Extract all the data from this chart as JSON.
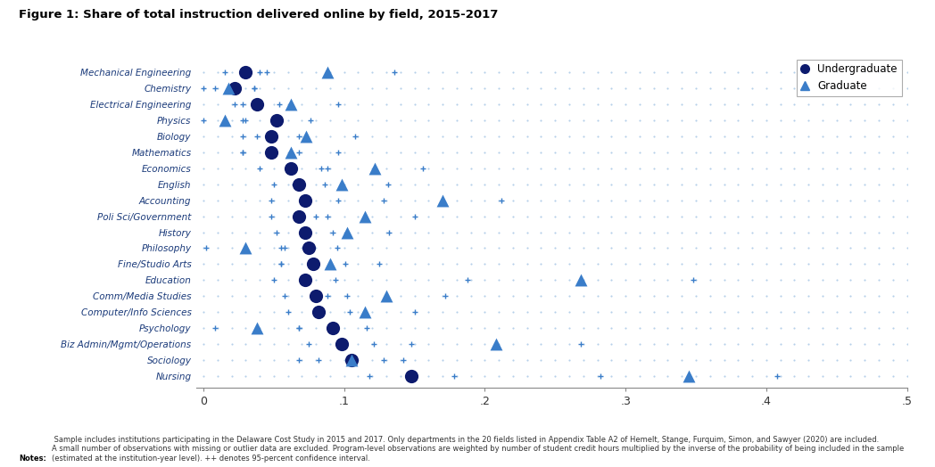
{
  "title": "Figure 1: Share of total instruction delivered online by field, 2015-2017",
  "fields": [
    "Mechanical Engineering",
    "Chemistry",
    "Electrical Engineering",
    "Physics",
    "Biology",
    "Mathematics",
    "Economics",
    "English",
    "Accounting",
    "Poli Sci/Government",
    "History",
    "Philosophy",
    "Fine/Studio Arts",
    "Education",
    "Comm/Media Studies",
    "Computer/Info Sciences",
    "Psychology",
    "Biz Admin/Mgmt/Operations",
    "Sociology",
    "Nursing"
  ],
  "undergrad_mean": [
    0.03,
    0.022,
    0.038,
    0.052,
    0.048,
    0.048,
    0.062,
    0.068,
    0.072,
    0.068,
    0.072,
    0.075,
    0.078,
    0.072,
    0.08,
    0.082,
    0.092,
    0.098,
    0.105,
    0.148
  ],
  "grad_mean": [
    0.088,
    0.018,
    0.062,
    0.015,
    0.073,
    0.062,
    0.122,
    0.098,
    0.17,
    0.115,
    0.102,
    0.03,
    0.09,
    0.268,
    0.13,
    0.115,
    0.038,
    0.208,
    0.105,
    0.345
  ],
  "undergrad_ci_lo": [
    0.015,
    0.008,
    0.022,
    0.028,
    0.028,
    0.028,
    0.04,
    0.05,
    0.048,
    0.048,
    0.052,
    0.055,
    0.055,
    0.05,
    0.058,
    0.06,
    0.068,
    0.075,
    0.082,
    0.118
  ],
  "undergrad_ci_hi": [
    0.045,
    0.036,
    0.054,
    0.076,
    0.068,
    0.068,
    0.084,
    0.086,
    0.096,
    0.088,
    0.092,
    0.095,
    0.101,
    0.094,
    0.102,
    0.104,
    0.116,
    0.121,
    0.128,
    0.178
  ],
  "grad_ci_lo": [
    0.04,
    0.0,
    0.028,
    0.0,
    0.038,
    0.028,
    0.088,
    0.065,
    0.128,
    0.08,
    0.072,
    0.002,
    0.055,
    0.188,
    0.088,
    0.08,
    0.008,
    0.148,
    0.068,
    0.282
  ],
  "grad_ci_hi": [
    0.136,
    0.036,
    0.096,
    0.03,
    0.108,
    0.096,
    0.156,
    0.131,
    0.212,
    0.15,
    0.132,
    0.058,
    0.125,
    0.348,
    0.172,
    0.15,
    0.068,
    0.268,
    0.142,
    0.408
  ],
  "xlim": [
    -0.005,
    0.5
  ],
  "xticks": [
    0,
    0.1,
    0.2,
    0.3,
    0.4,
    0.5
  ],
  "xticklabels": [
    "0",
    ".1",
    ".2",
    ".3",
    ".4",
    ".5"
  ],
  "navy_color": "#0d1b6e",
  "blue_color": "#3a7dc9",
  "dot_color": "#7aaad8",
  "bg_color": "#ffffff",
  "notes_bold": "Notes:",
  "notes_text": " Sample includes institutions participating in the Delaware Cost Study in 2015 and 2017. Only departments in the 20 fields listed in Appendix Table A2 of Hemelt, Stange, Furquim, Simon, and Sawyer (2020) are included.\nA small number of observations with missing or outlier data are excluded. Program-level observations are weighted by number of student credit hours multiplied by the inverse of the probability of being included in the sample\n(estimated at the institution-year level). ++ denotes 95-percent confidence interval."
}
